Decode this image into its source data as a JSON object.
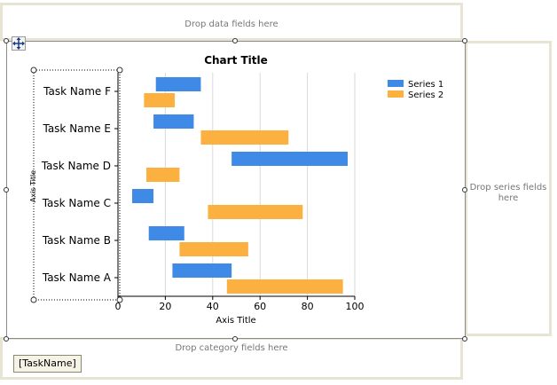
{
  "drop_zones": {
    "data": "Drop data fields here",
    "series_line1": "Drop series fields",
    "series_line2": "here",
    "category": "Drop category fields here"
  },
  "category_field": "[TaskName]",
  "colors": {
    "series1": "#3f8ae6",
    "series2": "#fbb040",
    "zone_border": "#e8e4d4"
  },
  "icons": {
    "move": "move-icon"
  },
  "chart_data": {
    "type": "bar",
    "orientation": "horizontal",
    "title": "Chart Title",
    "xlabel": "Axis Title",
    "ylabel": "Axis Title",
    "xlim": [
      0,
      100
    ],
    "xticks": [
      0,
      20,
      40,
      60,
      80,
      100
    ],
    "grid": true,
    "legend_position": "top-right",
    "categories": [
      "Task Name A",
      "Task Name B",
      "Task Name C",
      "Task Name D",
      "Task Name E",
      "Task Name F"
    ],
    "series": [
      {
        "name": "Series 1",
        "starts": [
          23,
          13,
          6,
          48,
          15,
          16
        ],
        "ends": [
          48,
          28,
          15,
          97,
          32,
          35
        ]
      },
      {
        "name": "Series 2",
        "starts": [
          46,
          26,
          38,
          12,
          35,
          11
        ],
        "ends": [
          95,
          55,
          78,
          26,
          72,
          24
        ]
      }
    ]
  }
}
